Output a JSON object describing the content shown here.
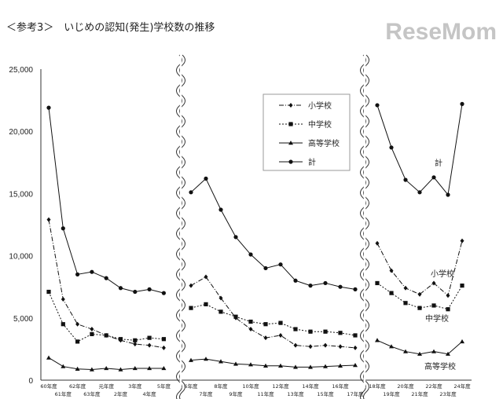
{
  "title": "＜参考3＞　いじめの認知(発生)学校数の推移",
  "logo": "ReseMom",
  "chart_data": {
    "type": "line",
    "title": "＜参考3＞　いじめの認知(発生)学校数の推移",
    "ylim": [
      0,
      25000
    ],
    "yticks": [
      "0",
      "5,000",
      "10,000",
      "15,000",
      "20,000",
      "25,000"
    ],
    "ytick_values": [
      0,
      5000,
      10000,
      15000,
      20000,
      25000
    ],
    "grid": false,
    "legend_placement": "top-center",
    "segments": [
      {
        "categories": [
          "60年度",
          "61年度",
          "62年度",
          "63年度",
          "元年度",
          "2年度",
          "3年度",
          "4年度",
          "5年度"
        ],
        "series": [
          {
            "name": "小学校",
            "values": [
              12900,
              6500,
              4500,
              4100,
              3600,
              3200,
              2900,
              2800,
              2600
            ]
          },
          {
            "name": "中学校",
            "values": [
              7100,
              4500,
              3100,
              3700,
              3600,
              3300,
              3200,
              3400,
              3300
            ]
          },
          {
            "name": "高等学校",
            "values": [
              1800,
              1100,
              900,
              850,
              950,
              850,
              950,
              950,
              950
            ]
          },
          {
            "name": "計",
            "values": [
              21900,
              12200,
              8500,
              8700,
              8200,
              7400,
              7100,
              7300,
              7000
            ]
          }
        ]
      },
      {
        "categories": [
          "6年度",
          "7年度",
          "8年度",
          "9年度",
          "10年度",
          "11年度",
          "12年度",
          "13年度",
          "14年度",
          "15年度",
          "16年度",
          "17年度"
        ],
        "series": [
          {
            "name": "小学校",
            "values": [
              7600,
              8300,
              6600,
              5000,
              4100,
              3400,
              3600,
              2800,
              2700,
              2800,
              2700,
              2600
            ]
          },
          {
            "name": "中学校",
            "values": [
              5800,
              6100,
              5500,
              5100,
              4700,
              4500,
              4600,
              4100,
              3900,
              3900,
              3800,
              3600
            ]
          },
          {
            "name": "高等学校",
            "values": [
              1600,
              1700,
              1500,
              1300,
              1250,
              1150,
              1150,
              1050,
              1050,
              1100,
              1150,
              1200
            ]
          },
          {
            "name": "計",
            "values": [
              15100,
              16200,
              13700,
              11500,
              10100,
              9000,
              9300,
              8000,
              7600,
              7800,
              7500,
              7300
            ]
          }
        ]
      },
      {
        "categories": [
          "18年度",
          "19年度",
          "20年度",
          "21年度",
          "22年度",
          "23年度",
          "24年度"
        ],
        "series": [
          {
            "name": "小学校",
            "values": [
              11000,
              8800,
              7400,
              6900,
              7800,
              6800,
              11200
            ]
          },
          {
            "name": "中学校",
            "values": [
              7800,
              7000,
              6200,
              5800,
              6000,
              5700,
              7600
            ]
          },
          {
            "name": "高等学校",
            "values": [
              3200,
              2700,
              2300,
              2100,
              2300,
              2100,
              3100
            ]
          },
          {
            "name": "計",
            "values": [
              22100,
              18700,
              16100,
              15100,
              16300,
              14900,
              22200
            ]
          }
        ]
      }
    ],
    "legend": [
      "小学校",
      "中学校",
      "高等学校",
      "計"
    ],
    "annotations": [
      "計",
      "小学校",
      "中学校",
      "高等学校"
    ]
  }
}
